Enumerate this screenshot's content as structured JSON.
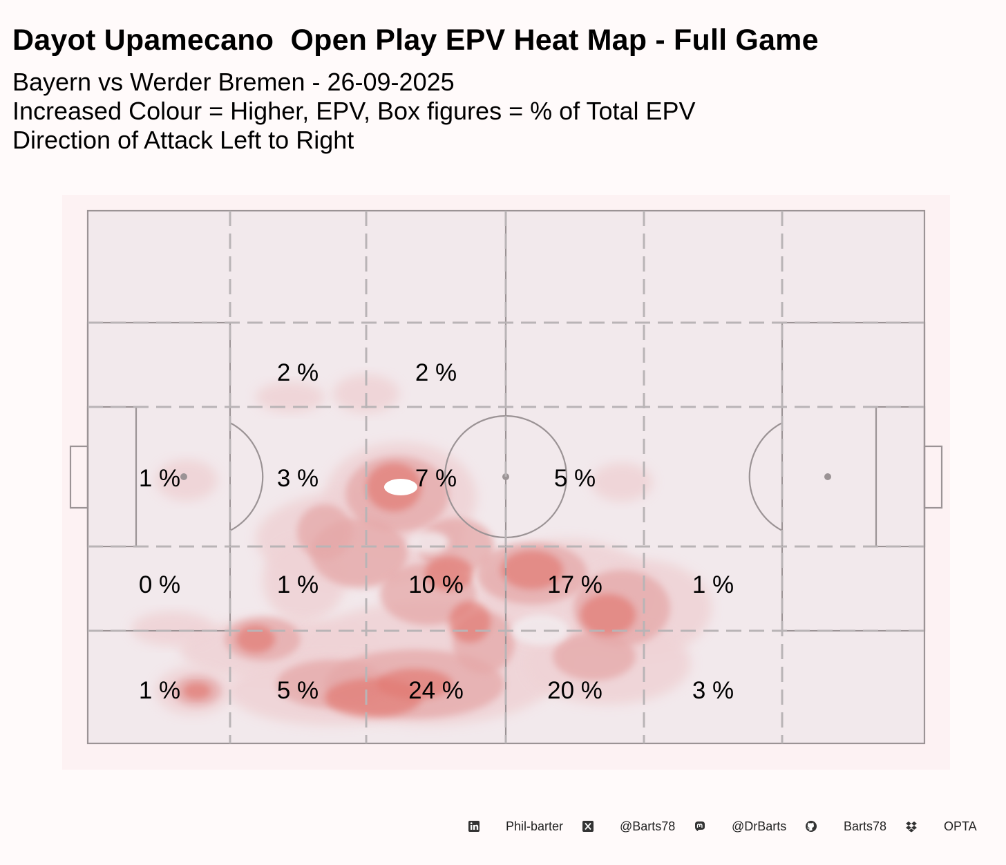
{
  "chart_data": {
    "type": "heatmap",
    "title": "Dayot Upamecano  Open Play EPV Heat Map - Full Game",
    "subtitle_lines": [
      "Bayern vs Werder Bremen - 26-09-2025",
      "Increased Colour = Higher, EPV, Box figures = % of Total EPV",
      "Direction of Attack Left to Right"
    ],
    "grid_labels": [
      {
        "zone": "top-left-wide-2",
        "text": "2 %"
      },
      {
        "zone": "top-left-wide-3",
        "text": "2 %"
      },
      {
        "zone": "centre-1",
        "text": "1 %"
      },
      {
        "zone": "centre-2",
        "text": "3 %"
      },
      {
        "zone": "centre-3",
        "text": "7 %"
      },
      {
        "zone": "centre-4",
        "text": "5 %"
      },
      {
        "zone": "bottom-half-1",
        "text": "0 %"
      },
      {
        "zone": "bottom-half-2",
        "text": "1 %"
      },
      {
        "zone": "bottom-half-3",
        "text": "10 %"
      },
      {
        "zone": "bottom-half-4",
        "text": "17 %"
      },
      {
        "zone": "bottom-half-5",
        "text": "1 %"
      },
      {
        "zone": "bottom-wide-1",
        "text": "1 %"
      },
      {
        "zone": "bottom-wide-2",
        "text": "5 %"
      },
      {
        "zone": "bottom-wide-3",
        "text": "24 %"
      },
      {
        "zone": "bottom-wide-4",
        "text": "20 %"
      },
      {
        "zone": "bottom-wide-5",
        "text": "3 %"
      }
    ],
    "colors": {
      "background": "#fffafa",
      "pitch": "#f2e9ec",
      "lines": "#9b9395",
      "zone_lines": "#b9b4b6",
      "heat_low": "#efd3d6",
      "heat_high": "#e27c75"
    }
  },
  "footer": [
    {
      "icon": "linkedin-icon",
      "text": "Phil-barter"
    },
    {
      "icon": "x-twitter-icon",
      "text": "@Barts78"
    },
    {
      "icon": "mastodon-icon",
      "text": "@DrBarts"
    },
    {
      "icon": "github-icon",
      "text": "Barts78"
    },
    {
      "icon": "dropbox-icon",
      "text": "OPTA"
    }
  ]
}
